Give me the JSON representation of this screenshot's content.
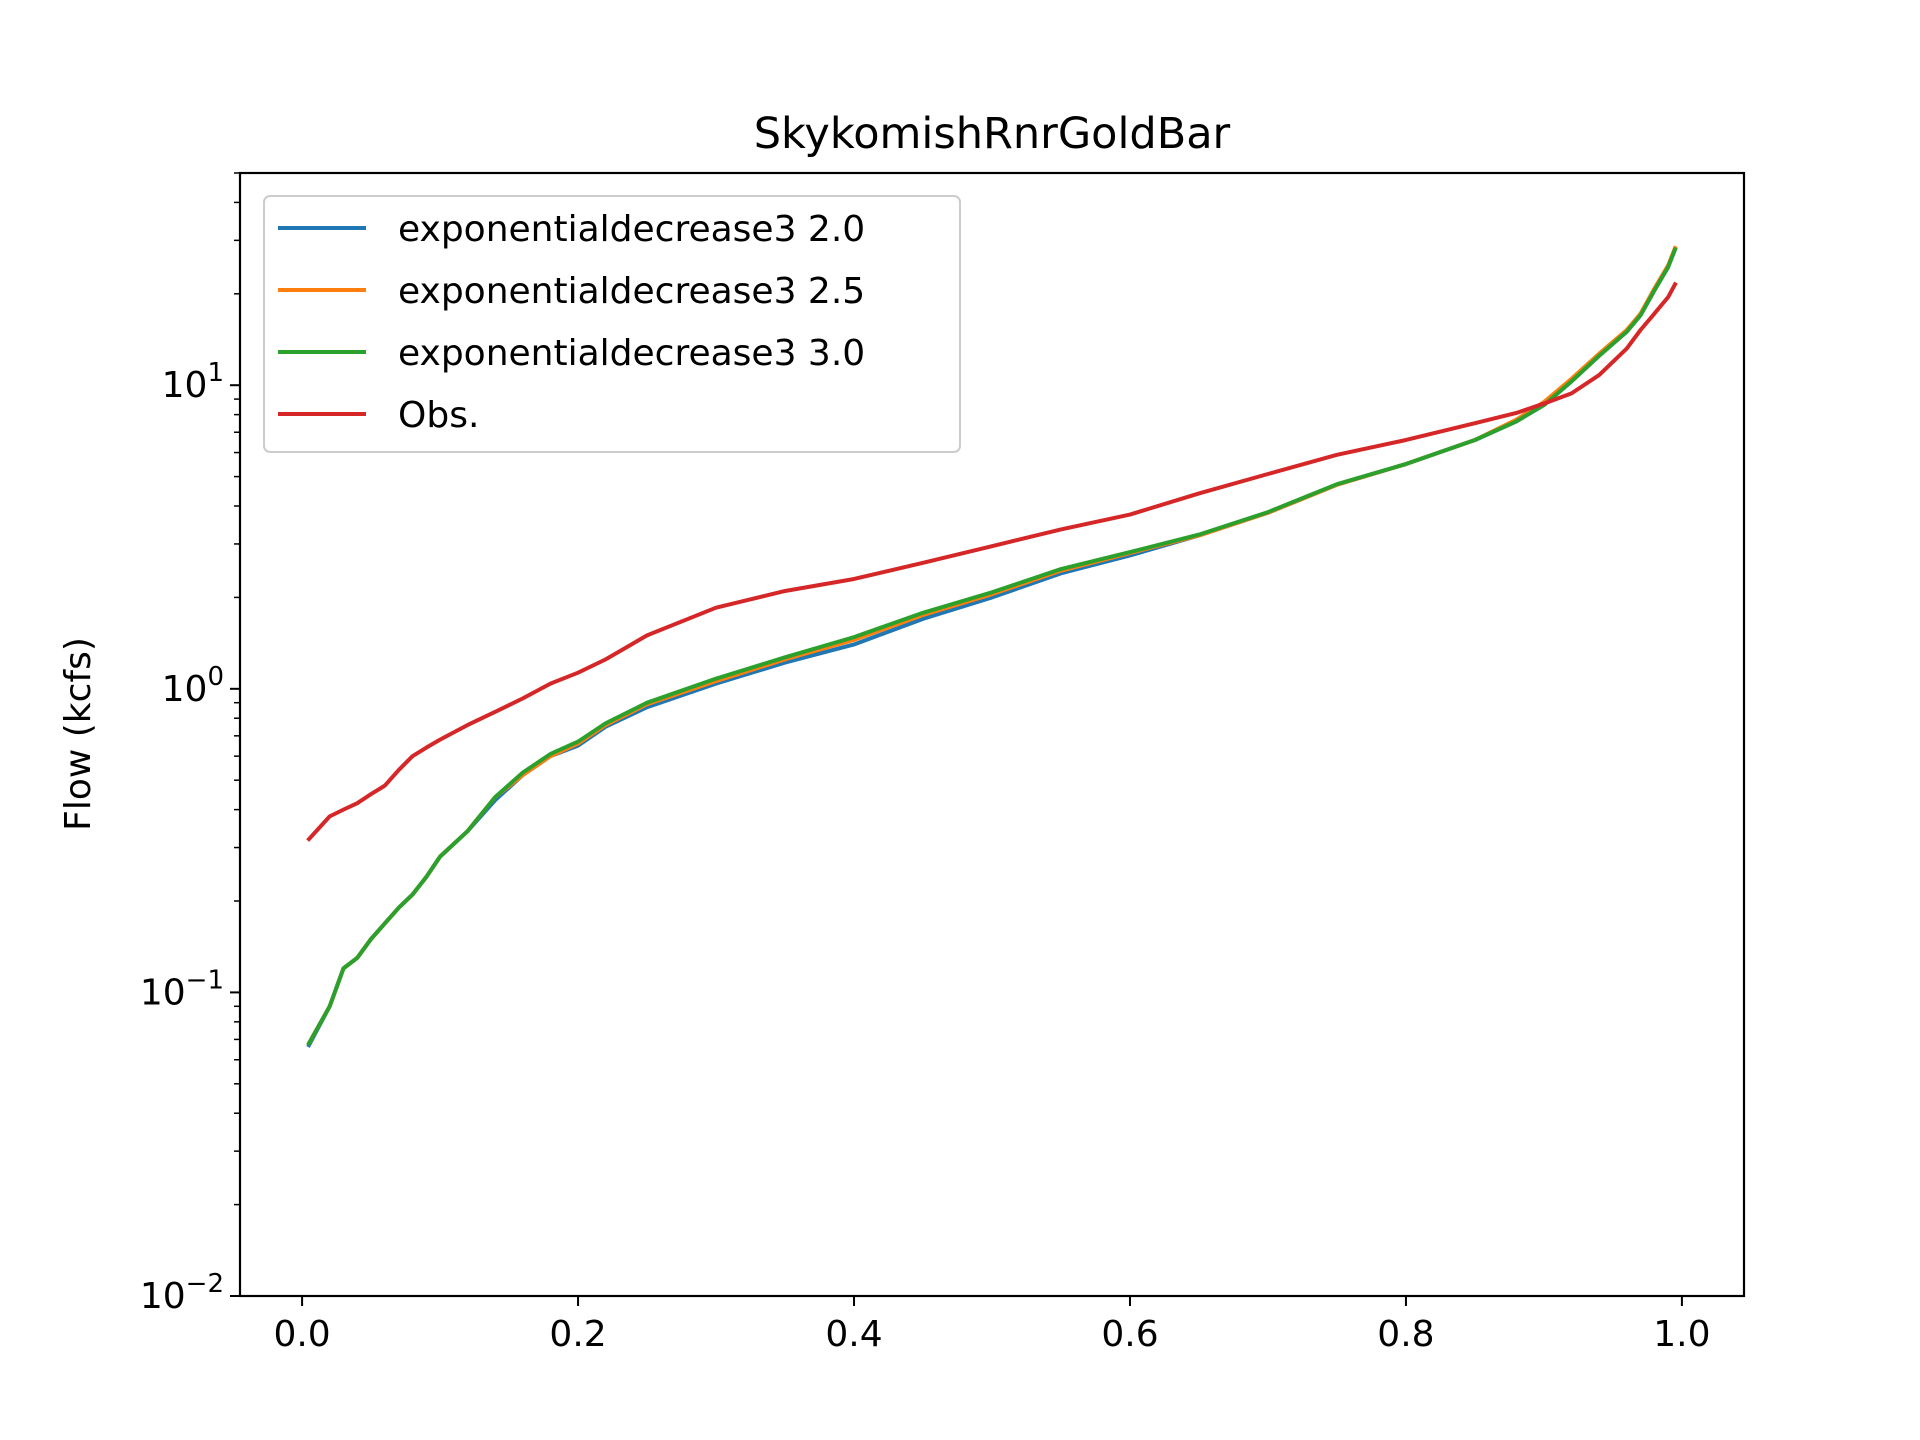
{
  "chart_data": {
    "type": "line",
    "title": "SkykomishRnrGoldBar",
    "xlabel": "",
    "ylabel": "Flow (kcfs)",
    "yscale": "log",
    "xlim": [
      -0.045,
      1.045
    ],
    "ylim": [
      0.01,
      50
    ],
    "xticks": [
      {
        "value": 0.0,
        "label": "0.0"
      },
      {
        "value": 0.2,
        "label": "0.2"
      },
      {
        "value": 0.4,
        "label": "0.4"
      },
      {
        "value": 0.6,
        "label": "0.6"
      },
      {
        "value": 0.8,
        "label": "0.8"
      },
      {
        "value": 1.0,
        "label": "1.0"
      }
    ],
    "yticks": [
      {
        "value": 0.01,
        "base": "10",
        "exp": "−2"
      },
      {
        "value": 0.1,
        "base": "10",
        "exp": "−1"
      },
      {
        "value": 1,
        "base": "10",
        "exp": "0"
      },
      {
        "value": 10,
        "base": "10",
        "exp": "1"
      }
    ],
    "grid": false,
    "legend_position": "upper-left",
    "series": [
      {
        "name": "exponentialdecrease3 2.0",
        "color": "#1f77b4",
        "x": [
          0.005,
          0.02,
          0.03,
          0.04,
          0.05,
          0.07,
          0.08,
          0.09,
          0.1,
          0.12,
          0.14,
          0.16,
          0.18,
          0.2,
          0.22,
          0.25,
          0.3,
          0.35,
          0.4,
          0.45,
          0.5,
          0.55,
          0.6,
          0.65,
          0.7,
          0.75,
          0.8,
          0.85,
          0.88,
          0.9,
          0.92,
          0.94,
          0.96,
          0.97,
          0.98,
          0.99,
          0.995
        ],
        "y": [
          0.067,
          0.09,
          0.12,
          0.13,
          0.15,
          0.19,
          0.21,
          0.24,
          0.28,
          0.34,
          0.43,
          0.52,
          0.6,
          0.65,
          0.75,
          0.87,
          1.04,
          1.22,
          1.4,
          1.7,
          2.0,
          2.4,
          2.75,
          3.2,
          3.8,
          4.7,
          5.5,
          6.6,
          7.6,
          8.6,
          10.3,
          12.5,
          15.0,
          17.0,
          20.5,
          24.5,
          28.0
        ]
      },
      {
        "name": "exponentialdecrease3 2.5",
        "color": "#ff7f0e",
        "x": [
          0.005,
          0.02,
          0.03,
          0.04,
          0.05,
          0.07,
          0.08,
          0.09,
          0.1,
          0.12,
          0.14,
          0.16,
          0.18,
          0.2,
          0.22,
          0.25,
          0.3,
          0.35,
          0.4,
          0.45,
          0.5,
          0.55,
          0.6,
          0.65,
          0.7,
          0.75,
          0.8,
          0.85,
          0.88,
          0.9,
          0.92,
          0.94,
          0.96,
          0.97,
          0.98,
          0.99,
          0.995
        ],
        "y": [
          0.068,
          0.09,
          0.12,
          0.13,
          0.15,
          0.19,
          0.21,
          0.24,
          0.28,
          0.34,
          0.44,
          0.52,
          0.6,
          0.66,
          0.76,
          0.89,
          1.06,
          1.25,
          1.45,
          1.75,
          2.05,
          2.45,
          2.8,
          3.2,
          3.8,
          4.7,
          5.5,
          6.6,
          7.7,
          8.8,
          10.5,
          12.7,
          15.2,
          17.2,
          20.8,
          24.8,
          28.3
        ]
      },
      {
        "name": "exponentialdecrease3 3.0",
        "color": "#2ca02c",
        "x": [
          0.005,
          0.02,
          0.03,
          0.04,
          0.05,
          0.07,
          0.08,
          0.09,
          0.1,
          0.12,
          0.14,
          0.16,
          0.18,
          0.2,
          0.22,
          0.25,
          0.3,
          0.35,
          0.4,
          0.45,
          0.5,
          0.55,
          0.6,
          0.65,
          0.7,
          0.75,
          0.8,
          0.85,
          0.88,
          0.9,
          0.92,
          0.94,
          0.96,
          0.97,
          0.98,
          0.99,
          0.995
        ],
        "y": [
          0.068,
          0.09,
          0.12,
          0.13,
          0.15,
          0.19,
          0.21,
          0.24,
          0.28,
          0.34,
          0.44,
          0.53,
          0.61,
          0.67,
          0.77,
          0.9,
          1.08,
          1.27,
          1.48,
          1.78,
          2.08,
          2.48,
          2.82,
          3.22,
          3.82,
          4.72,
          5.5,
          6.6,
          7.6,
          8.6,
          10.3,
          12.5,
          15.0,
          17.0,
          20.5,
          24.5,
          28.0
        ]
      },
      {
        "name": "Obs.",
        "color": "#d62728",
        "x": [
          0.005,
          0.02,
          0.03,
          0.04,
          0.05,
          0.06,
          0.07,
          0.08,
          0.09,
          0.1,
          0.12,
          0.14,
          0.16,
          0.18,
          0.2,
          0.22,
          0.25,
          0.3,
          0.35,
          0.4,
          0.45,
          0.5,
          0.55,
          0.6,
          0.65,
          0.7,
          0.75,
          0.8,
          0.85,
          0.88,
          0.9,
          0.92,
          0.94,
          0.96,
          0.97,
          0.98,
          0.99,
          0.995
        ],
        "y": [
          0.32,
          0.38,
          0.4,
          0.42,
          0.45,
          0.48,
          0.54,
          0.6,
          0.64,
          0.68,
          0.76,
          0.84,
          0.93,
          1.04,
          1.13,
          1.25,
          1.5,
          1.85,
          2.1,
          2.3,
          2.6,
          2.95,
          3.35,
          3.75,
          4.4,
          5.1,
          5.9,
          6.6,
          7.5,
          8.1,
          8.7,
          9.4,
          10.8,
          13.2,
          15.2,
          17.2,
          19.5,
          21.5
        ]
      }
    ]
  }
}
